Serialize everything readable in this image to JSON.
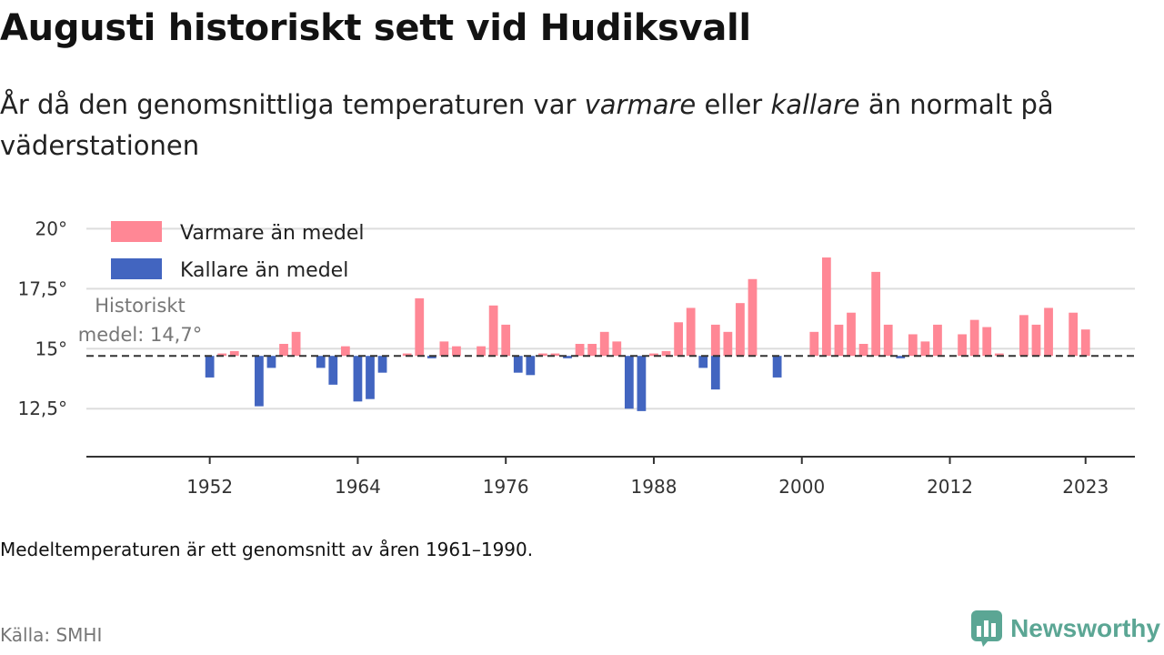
{
  "title": "Augusti historiskt sett vid Hudiksvall",
  "subtitle": {
    "part1": "År då den genomsnittliga temperaturen var ",
    "warm_word": "varmare",
    "part2": " eller ",
    "cold_word": "kallare",
    "part3": " än normalt på väderstationen"
  },
  "footnote": "Medeltemperaturen är ett genomsnitt av åren 1961–1990.",
  "source": "Källa: SMHI",
  "brand": "Newsworthy",
  "colors": {
    "warm": "#ff8795",
    "cold": "#4265c0",
    "brand": "#5ba694"
  },
  "chart_data": {
    "type": "bar",
    "baseline": 14.7,
    "annotation": {
      "line1": "Historiskt",
      "line2": "medel: 14,7°"
    },
    "ylim": [
      10.5,
      21
    ],
    "yticks": [
      {
        "value": 12.5,
        "label": "12,5°"
      },
      {
        "value": 15,
        "label": "15°"
      },
      {
        "value": 17.5,
        "label": "17,5°"
      },
      {
        "value": 20,
        "label": "20°"
      }
    ],
    "xlim": [
      1942,
      2027
    ],
    "xticks": [
      {
        "value": 1952,
        "label": "1952"
      },
      {
        "value": 1964,
        "label": "1964"
      },
      {
        "value": 1976,
        "label": "1976"
      },
      {
        "value": 1988,
        "label": "1988"
      },
      {
        "value": 2000,
        "label": "2000"
      },
      {
        "value": 2012,
        "label": "2012"
      },
      {
        "value": 2023,
        "label": "2023"
      }
    ],
    "legend": [
      {
        "label": "Varmare än medel",
        "color": "warm"
      },
      {
        "label": "Kallare än medel",
        "color": "cold"
      }
    ],
    "legend_position": "top-left",
    "grid": true,
    "series": [
      {
        "name": "Varmare än medel",
        "points": [
          [
            1953,
            14.8
          ],
          [
            1954,
            14.9
          ],
          [
            1958,
            15.2
          ],
          [
            1959,
            15.7
          ],
          [
            1963,
            15.1
          ],
          [
            1968,
            14.8
          ],
          [
            1969,
            17.1
          ],
          [
            1971,
            15.3
          ],
          [
            1972,
            15.1
          ],
          [
            1974,
            15.1
          ],
          [
            1975,
            16.8
          ],
          [
            1976,
            16.0
          ],
          [
            1979,
            14.8
          ],
          [
            1980,
            14.8
          ],
          [
            1982,
            15.2
          ],
          [
            1983,
            15.2
          ],
          [
            1984,
            15.7
          ],
          [
            1985,
            15.3
          ],
          [
            1988,
            14.8
          ],
          [
            1989,
            14.9
          ],
          [
            1990,
            16.1
          ],
          [
            1991,
            16.7
          ],
          [
            1993,
            16.0
          ],
          [
            1994,
            15.7
          ],
          [
            1995,
            16.9
          ],
          [
            1996,
            17.9
          ],
          [
            2001,
            15.7
          ],
          [
            2002,
            18.8
          ],
          [
            2003,
            16.0
          ],
          [
            2004,
            16.5
          ],
          [
            2005,
            15.2
          ],
          [
            2006,
            18.2
          ],
          [
            2007,
            16.0
          ],
          [
            2009,
            15.6
          ],
          [
            2010,
            15.3
          ],
          [
            2011,
            16.0
          ],
          [
            2013,
            15.6
          ],
          [
            2014,
            16.2
          ],
          [
            2015,
            15.9
          ],
          [
            2016,
            14.8
          ],
          [
            2018,
            16.4
          ],
          [
            2019,
            16.0
          ],
          [
            2020,
            16.7
          ],
          [
            2022,
            16.5
          ],
          [
            2023,
            15.8
          ]
        ]
      },
      {
        "name": "Kallare än medel",
        "points": [
          [
            1952,
            13.8
          ],
          [
            1956,
            12.6
          ],
          [
            1957,
            14.2
          ],
          [
            1961,
            14.2
          ],
          [
            1962,
            13.5
          ],
          [
            1964,
            12.8
          ],
          [
            1965,
            12.9
          ],
          [
            1966,
            14.0
          ],
          [
            1970,
            14.6
          ],
          [
            1977,
            14.0
          ],
          [
            1978,
            13.9
          ],
          [
            1981,
            14.6
          ],
          [
            1986,
            12.5
          ],
          [
            1987,
            12.4
          ],
          [
            1992,
            14.2
          ],
          [
            1993.999,
            14.7
          ],
          [
            1994.001,
            14.7
          ],
          [
            1997,
            14.7
          ],
          [
            1993,
            13.3
          ],
          [
            1998,
            13.8
          ],
          [
            2008,
            14.6
          ]
        ]
      }
    ]
  }
}
